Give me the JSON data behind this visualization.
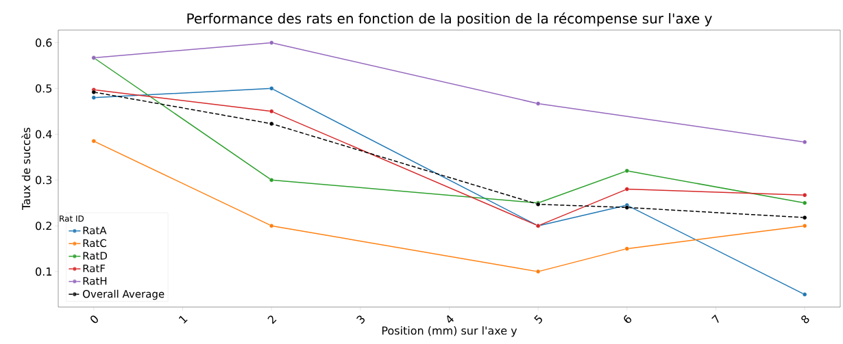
{
  "chart_data": {
    "type": "line",
    "title": "Performance des rats en fonction de la position de la récompense sur l'axe y",
    "xlabel": "Position (mm) sur l'axe y",
    "ylabel": "Taux de succès",
    "legend_title": "Rat ID",
    "xlim": [
      -0.4,
      8.4
    ],
    "ylim": [
      0.0225,
      0.6275
    ],
    "xticks": [
      0,
      1,
      2,
      3,
      4,
      5,
      6,
      7,
      8
    ],
    "yticks": [
      0.1,
      0.2,
      0.3,
      0.4,
      0.5,
      0.6
    ],
    "legend": "bottom left",
    "grid": false,
    "marker": "circle",
    "series": [
      {
        "name": "RatA",
        "color": "#1f77b4",
        "x": [
          0,
          2,
          5,
          6,
          8
        ],
        "values": [
          0.48,
          0.5,
          0.2,
          0.245,
          0.05
        ]
      },
      {
        "name": "RatC",
        "color": "#ff7f0e",
        "x": [
          0,
          2,
          5,
          6,
          8
        ],
        "values": [
          0.385,
          0.2,
          0.1,
          0.15,
          0.2
        ]
      },
      {
        "name": "RatD",
        "color": "#2ca02c",
        "x": [
          0,
          2,
          5,
          6,
          8
        ],
        "values": [
          0.567,
          0.3,
          0.25,
          0.32,
          0.25
        ]
      },
      {
        "name": "RatF",
        "color": "#d62728",
        "x": [
          0,
          2,
          5,
          6,
          8
        ],
        "values": [
          0.497,
          0.45,
          0.2,
          0.28,
          0.267
        ]
      },
      {
        "name": "RatH",
        "color": "#9467bd",
        "x": [
          0,
          2,
          5,
          8
        ],
        "values": [
          0.567,
          0.6,
          0.467,
          0.383
        ]
      },
      {
        "name": "Overall Average",
        "color": "#000000",
        "line_style": "dashed",
        "x": [
          0,
          2,
          5,
          6,
          8
        ],
        "values": [
          0.492,
          0.423,
          0.247,
          0.24,
          0.218
        ]
      }
    ]
  }
}
